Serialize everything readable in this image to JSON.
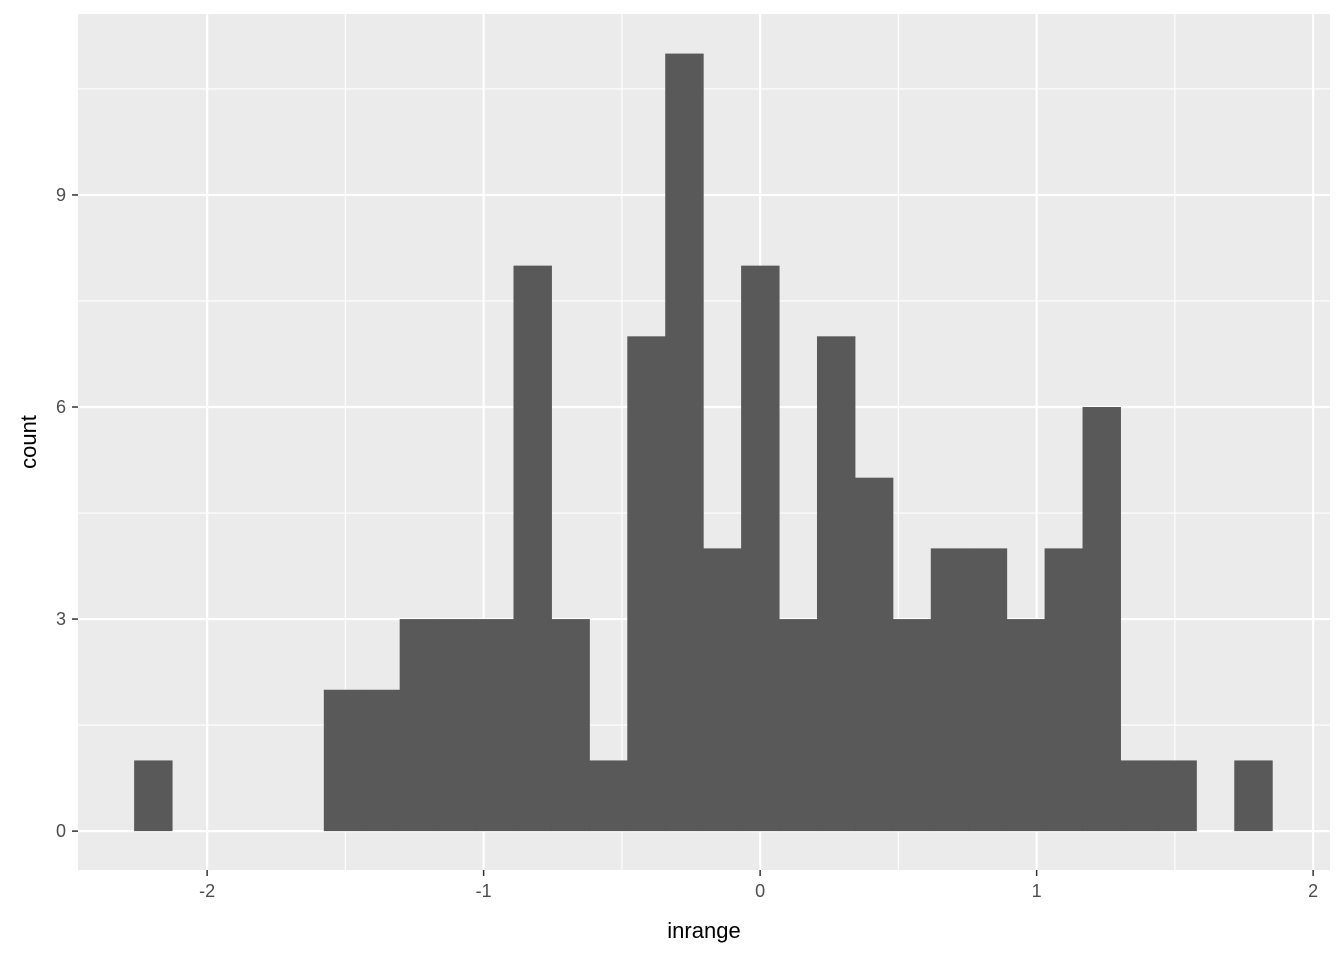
{
  "chart_data": {
    "type": "bar",
    "subtype": "histogram",
    "xlabel": "inrange",
    "ylabel": "count",
    "xlim": [
      -2.467,
      2.061
    ],
    "ylim": [
      -0.55,
      11.56
    ],
    "x_ticks": [
      -2,
      -1,
      0,
      1,
      2
    ],
    "x_tick_labels": [
      "-2",
      "-1",
      "0",
      "1",
      "2"
    ],
    "y_ticks": [
      0,
      3,
      6,
      9
    ],
    "y_tick_labels": [
      "0",
      "3",
      "6",
      "9"
    ],
    "bin_start": -2.264,
    "bin_width": 0.1372,
    "counts": [
      1,
      0,
      0,
      0,
      0,
      2,
      2,
      3,
      3,
      3,
      8,
      3,
      1,
      7,
      11,
      4,
      8,
      3,
      7,
      5,
      3,
      4,
      4,
      3,
      4,
      6,
      1,
      1,
      0,
      1
    ],
    "grid": true,
    "colors": {
      "panel": "#EBEBEB",
      "grid": "#FFFFFF",
      "bar": "#595959",
      "text": "#4D4D4D"
    }
  }
}
